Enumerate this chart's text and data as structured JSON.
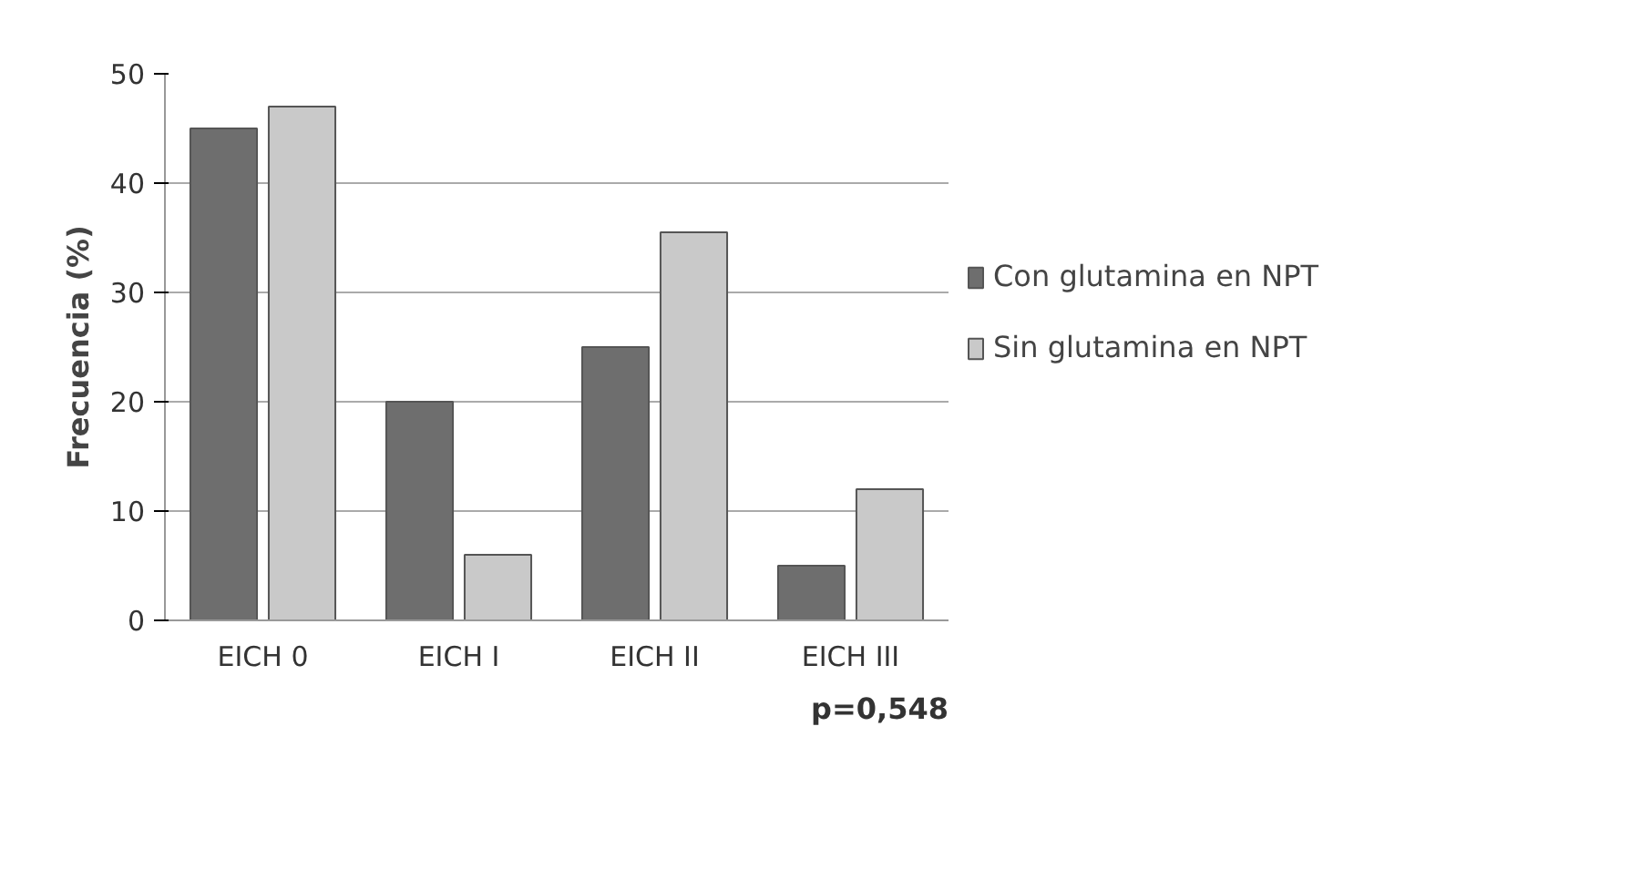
{
  "chart_data": {
    "type": "bar",
    "ylabel": "Frecuencia (%)",
    "categories": [
      "EICH 0",
      "EICH I",
      "EICH II",
      "EICH III"
    ],
    "series": [
      {
        "name": "Con glutamina en NPT",
        "color": "#6e6e6e",
        "values": [
          45,
          20,
          25,
          5
        ]
      },
      {
        "name": "Sin glutamina en NPT",
        "color": "#c9c9c9",
        "values": [
          47,
          6,
          35.5,
          12
        ]
      }
    ],
    "ylim": [
      0,
      50
    ],
    "yticks": [
      0,
      10,
      20,
      30,
      40,
      50
    ],
    "grid": "y",
    "legend": "right",
    "annotations": [
      "p=0,548"
    ]
  }
}
